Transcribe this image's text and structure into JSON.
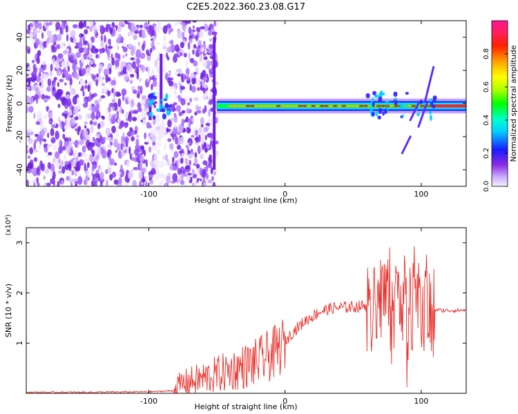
{
  "title": "C2E5.2022.360.23.08.G17",
  "chart_data": [
    {
      "type": "heatmap",
      "xlabel": "Height of straight line (km)",
      "ylabel": "Frequency (Hz)",
      "xlim": [
        -190,
        133
      ],
      "ylim": [
        -50,
        50
      ],
      "xticks": [
        -100,
        0,
        100
      ],
      "yticks": [
        -40,
        -20,
        0,
        20,
        40
      ],
      "colorbar": {
        "label": "Normalized spectral amplitude",
        "range": [
          0,
          1
        ],
        "ticks": [
          "0.0",
          "0.2",
          "0.4",
          "0.6",
          "0.8"
        ]
      },
      "features": {
        "noise_region_x": [
          -190,
          -50
        ],
        "carrier_frequency_hz": -1.5,
        "carrier_start_x": -50,
        "strong_carrier_x": [
          -40,
          133
        ],
        "scintillation_regions_x": [
          [
            -100,
            -85
          ],
          [
            60,
            75
          ],
          [
            80,
            110
          ]
        ]
      }
    },
    {
      "type": "line",
      "xlabel": "Height of straight line (km)",
      "ylabel": "SNR (10 * v/v)",
      "y_scale_label": "(x10⁴)",
      "xlim": [
        -190,
        133
      ],
      "ylim": [
        0,
        3.3
      ],
      "xticks": [
        -100,
        0,
        100
      ],
      "yticks": [
        1,
        2,
        3
      ],
      "series": [
        {
          "color": "#e8302a",
          "x": [
            -190,
            -150,
            -100,
            -82,
            -75,
            -60,
            -40,
            -20,
            -5,
            5,
            15,
            25,
            35,
            50,
            60,
            65,
            70,
            75,
            80,
            85,
            90,
            95,
            100,
            105,
            108,
            110,
            115,
            125,
            133
          ],
          "y": [
            0.02,
            0.02,
            0.03,
            0.05,
            0.2,
            0.3,
            0.45,
            0.62,
            0.85,
            1.2,
            1.45,
            1.62,
            1.7,
            1.72,
            1.75,
            1.6,
            1.8,
            2.0,
            1.6,
            2.2,
            1.4,
            2.0,
            1.5,
            1.9,
            1.2,
            1.67,
            1.65,
            1.65,
            1.66
          ]
        }
      ]
    }
  ]
}
